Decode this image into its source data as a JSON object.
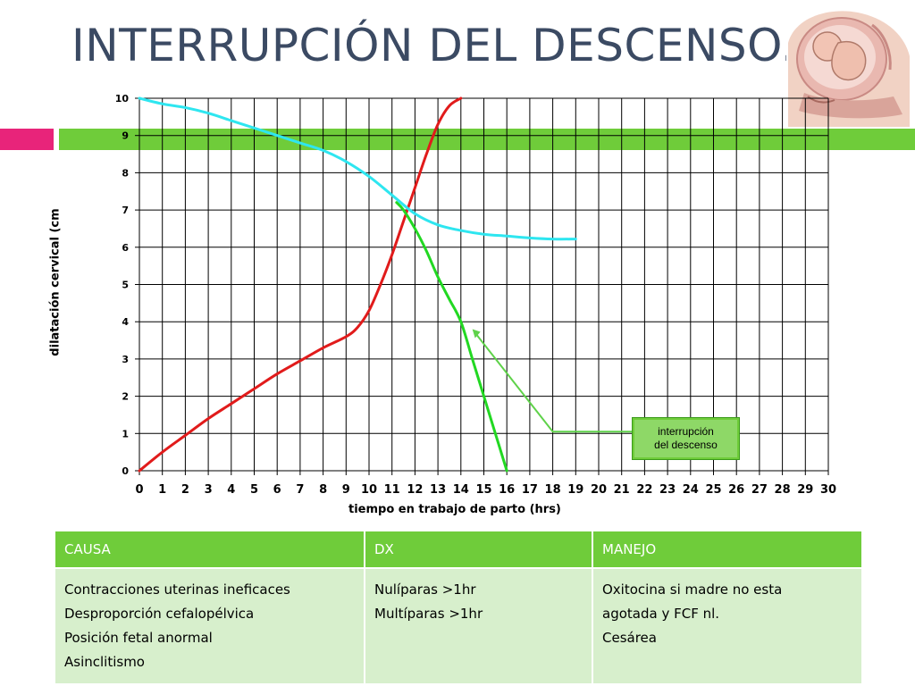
{
  "slide": {
    "title": "INTERRUPCIÓN DEL DESCENSO.",
    "accent_pink": "#e8247a",
    "accent_green": "#6fcc3a",
    "illustration": "pregnant-uterus-cross-section"
  },
  "chart_data": {
    "type": "line",
    "xlabel": "tiempo en trabajo de parto (hrs)",
    "ylabel": "dilatación cervical (cm",
    "xlim": [
      0,
      30
    ],
    "ylim": [
      0,
      10
    ],
    "x_ticks": [
      "0",
      "1",
      "2",
      "3",
      "4",
      "5",
      "6",
      "7",
      "8",
      "9",
      "10",
      "11",
      "12",
      "13",
      "14",
      "15",
      "16",
      "17",
      "18",
      "19",
      "20",
      "21",
      "22",
      "23",
      "24",
      "25",
      "26",
      "27",
      "28",
      "29",
      "30"
    ],
    "y_ticks": [
      "0",
      "1",
      "2",
      "3",
      "4",
      "5",
      "6",
      "7",
      "8",
      "9",
      "10"
    ],
    "grid": true,
    "series": [
      {
        "color": "#e11b1b",
        "x": [
          0,
          1,
          2,
          3,
          4,
          5,
          6,
          7,
          8,
          9,
          9.5,
          10,
          10.5,
          11,
          11.5,
          12,
          12.5,
          13,
          13.5,
          14
        ],
        "y": [
          0,
          0.5,
          0.95,
          1.4,
          1.8,
          2.2,
          2.6,
          2.95,
          3.3,
          3.6,
          3.85,
          4.3,
          5.0,
          5.8,
          6.7,
          7.6,
          8.5,
          9.3,
          9.8,
          10
        ]
      },
      {
        "color": "#2ee6f0",
        "x": [
          0,
          1,
          2,
          3,
          4,
          5,
          6,
          7,
          8,
          9,
          10,
          11,
          12,
          13,
          14,
          15,
          16,
          17,
          18,
          19
        ],
        "y": [
          10,
          9.85,
          9.75,
          9.6,
          9.4,
          9.2,
          9.0,
          8.8,
          8.6,
          8.3,
          7.9,
          7.4,
          6.9,
          6.6,
          6.45,
          6.35,
          6.3,
          6.25,
          6.22,
          6.22
        ]
      },
      {
        "color": "#22d822",
        "x": [
          11.2,
          11.5,
          12,
          12.5,
          13,
          13.5,
          14,
          14.5,
          15,
          15.5,
          16
        ],
        "y": [
          7.2,
          7.0,
          6.5,
          5.9,
          5.2,
          4.6,
          4.0,
          3.0,
          2.0,
          1.0,
          0
        ]
      }
    ],
    "annotation": {
      "label_line1": "interrupción",
      "label_line2": "del descenso",
      "points_to": {
        "x": 14.5,
        "y": 3.8
      }
    }
  },
  "table": {
    "headers": [
      "CAUSA",
      "DX",
      "MANEJO"
    ],
    "rows": [
      {
        "causa": [
          "Contracciones uterinas ineficaces",
          "Desproporción cefalopélvica",
          "Posición fetal anormal",
          "Asinclitismo"
        ],
        "dx": [
          "Nulíparas >1hr",
          "Multíparas >1hr"
        ],
        "manejo": [
          "Oxitocina si madre no esta",
          "agotada y FCF nl.",
          "Cesárea"
        ]
      }
    ]
  }
}
